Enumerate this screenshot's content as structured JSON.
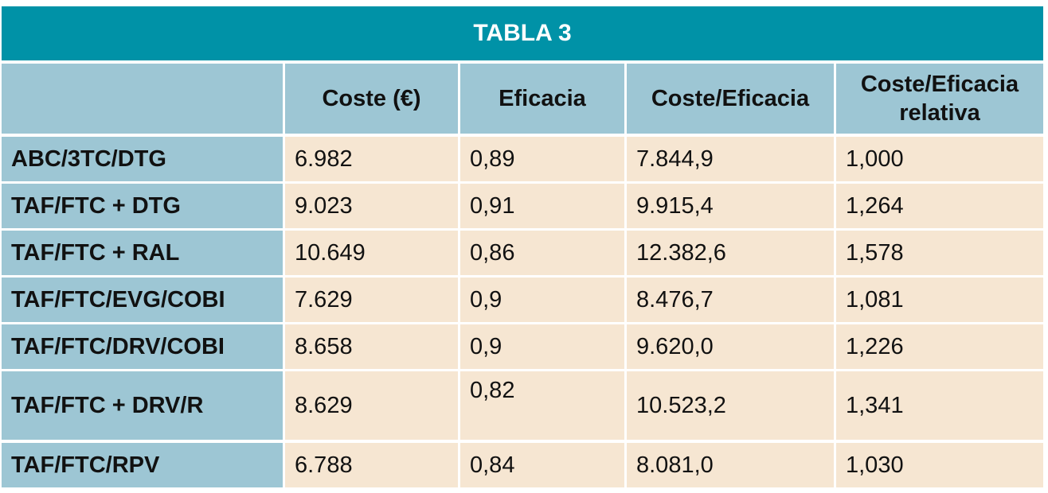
{
  "table": {
    "title": "TABLA 3",
    "header": [
      "Coste (€)",
      "Eficacia",
      "Coste/Eficacia",
      "Coste/Eficacia relativa"
    ],
    "rows": [
      [
        "ABC/3TC/DTG",
        "6.982",
        "0,89",
        "7.844,9",
        "1,000"
      ],
      [
        "TAF/FTC + DTG",
        "9.023",
        "0,91",
        "9.915,4",
        "1,264"
      ],
      [
        "TAF/FTC + RAL",
        "10.649",
        "0,86",
        "12.382,6",
        "1,578"
      ],
      [
        "TAF/FTC/EVG/COBI",
        "7.629",
        "0,9",
        "8.476,7",
        "1,081"
      ],
      [
        "TAF/FTC/DRV/COBI",
        "8.658",
        "0,9",
        "9.620,0",
        "1,226"
      ],
      [
        "TAF/FTC + DRV/R",
        "8.629",
        "0,82",
        "10.523,2",
        "1,341"
      ],
      [
        "TAF/FTC/RPV",
        "6.788",
        "0,84",
        "8.081,0",
        "1,030"
      ]
    ]
  }
}
